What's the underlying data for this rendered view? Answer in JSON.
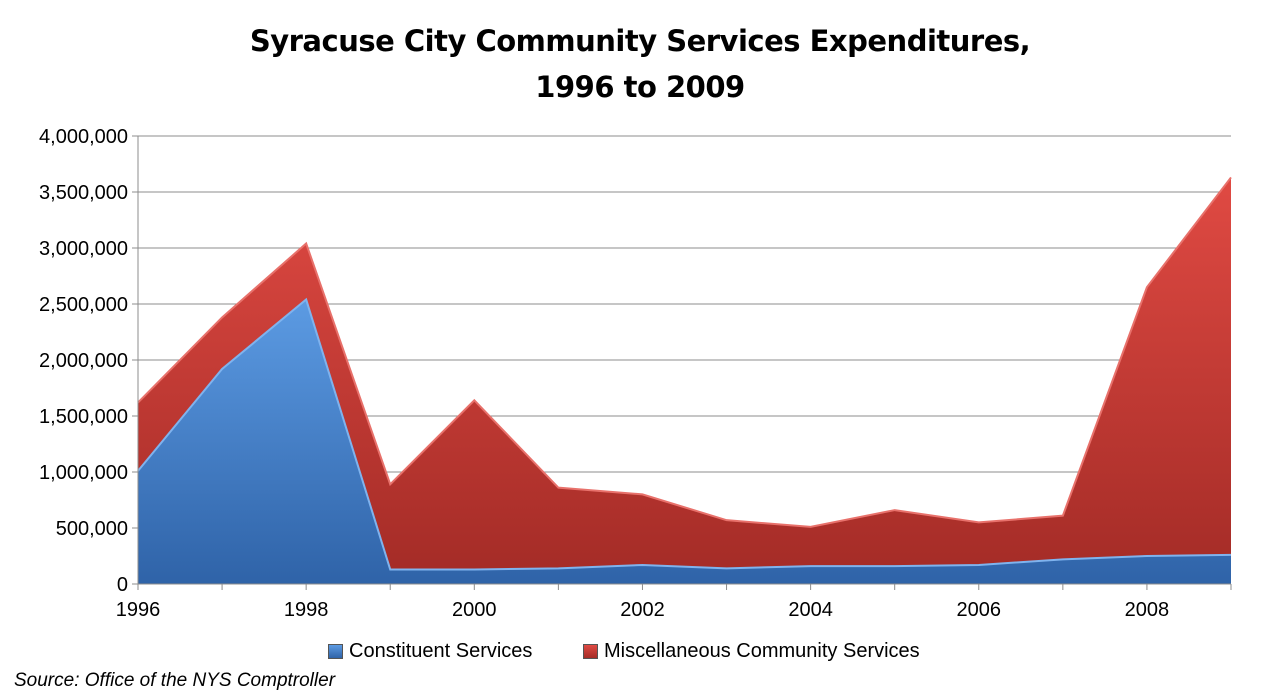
{
  "chart_data": {
    "type": "area",
    "stacked": true,
    "title_line1": "Syracuse City Community Services Expenditures,",
    "title_line2": "1996 to 2009",
    "x": [
      1996,
      1997,
      1998,
      1999,
      2000,
      2001,
      2002,
      2003,
      2004,
      2005,
      2006,
      2007,
      2008,
      2009
    ],
    "x_tick_labels": [
      "1996",
      "1998",
      "2000",
      "2002",
      "2004",
      "2006",
      "2008"
    ],
    "y_tick_labels": [
      "0",
      "500,000",
      "1,000,000",
      "1,500,000",
      "2,000,000",
      "2,500,000",
      "3,000,000",
      "3,500,000",
      "4,000,000"
    ],
    "ylim": [
      0,
      4000000
    ],
    "xlim": [
      1996,
      2009
    ],
    "grid": true,
    "legend_position": "bottom",
    "series": [
      {
        "name": "Constituent Services",
        "color": "#3a78c8",
        "values": [
          1010000,
          1920000,
          2540000,
          130000,
          130000,
          140000,
          170000,
          140000,
          160000,
          160000,
          170000,
          220000,
          250000,
          260000
        ]
      },
      {
        "name": "Miscellaneous Community Services",
        "color": "#c0352f",
        "values": [
          610000,
          460000,
          500000,
          760000,
          1510000,
          720000,
          630000,
          430000,
          350000,
          500000,
          380000,
          390000,
          2400000,
          3370000
        ]
      }
    ],
    "source": "Source:  Office of the NYS Comptroller"
  }
}
